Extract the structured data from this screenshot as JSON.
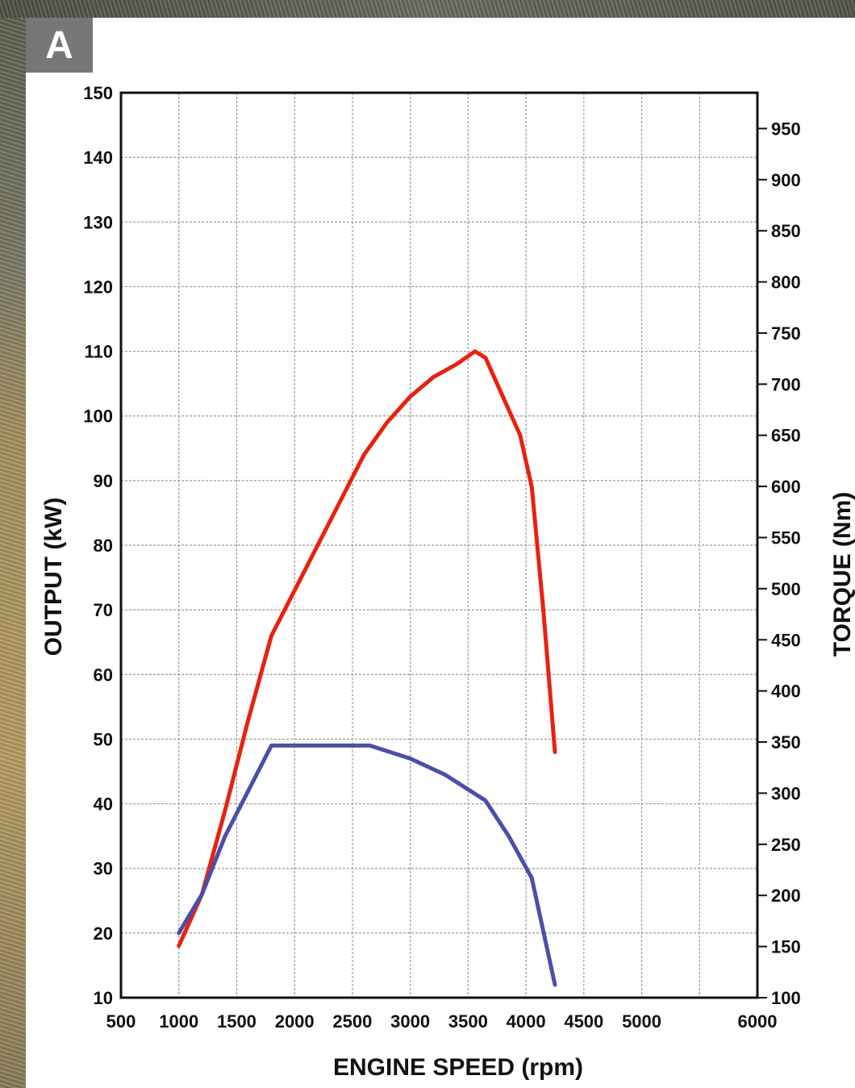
{
  "badge": "A",
  "chart_data": {
    "type": "line",
    "xlabel": "ENGINE SPEED (rpm)",
    "ylabel_left": "OUTPUT (kW)",
    "ylabel_right": "TORQUE (Nm)",
    "xlim": [
      500,
      6000
    ],
    "ylim_left": [
      10,
      150
    ],
    "ylim_right": [
      100,
      985
    ],
    "x_ticks": [
      500,
      1000,
      1500,
      2000,
      2500,
      3000,
      3500,
      4000,
      4500,
      5000,
      6000
    ],
    "y_left_ticks": [
      10,
      20,
      30,
      40,
      50,
      60,
      70,
      80,
      90,
      100,
      110,
      120,
      130,
      140,
      150
    ],
    "y_right_ticks": [
      100,
      150,
      200,
      250,
      300,
      350,
      400,
      450,
      500,
      550,
      600,
      650,
      700,
      750,
      800,
      850,
      900,
      950
    ],
    "grid": true,
    "colors": {
      "output": "#e8220f",
      "torque": "#4a4fa8"
    },
    "series": [
      {
        "key": "output",
        "axis": "left",
        "values": [
          [
            1000,
            18
          ],
          [
            1200,
            26
          ],
          [
            1400,
            39
          ],
          [
            1600,
            53
          ],
          [
            1800,
            66
          ],
          [
            2000,
            73
          ],
          [
            2200,
            80
          ],
          [
            2400,
            87
          ],
          [
            2600,
            94
          ],
          [
            2800,
            99
          ],
          [
            3000,
            103
          ],
          [
            3200,
            106
          ],
          [
            3400,
            108
          ],
          [
            3560,
            110
          ],
          [
            3650,
            109
          ],
          [
            3800,
            103
          ],
          [
            3950,
            97
          ],
          [
            4050,
            89
          ],
          [
            4150,
            70
          ],
          [
            4250,
            48
          ]
        ]
      },
      {
        "key": "torque",
        "axis": "left",
        "values": [
          [
            1000,
            20
          ],
          [
            1200,
            26
          ],
          [
            1400,
            35
          ],
          [
            1600,
            42
          ],
          [
            1800,
            49
          ],
          [
            2000,
            49
          ],
          [
            2300,
            49
          ],
          [
            2650,
            49
          ],
          [
            3000,
            47
          ],
          [
            3300,
            44.5
          ],
          [
            3650,
            40.5
          ],
          [
            3850,
            35
          ],
          [
            4050,
            28.5
          ],
          [
            4250,
            12
          ]
        ]
      }
    ]
  }
}
